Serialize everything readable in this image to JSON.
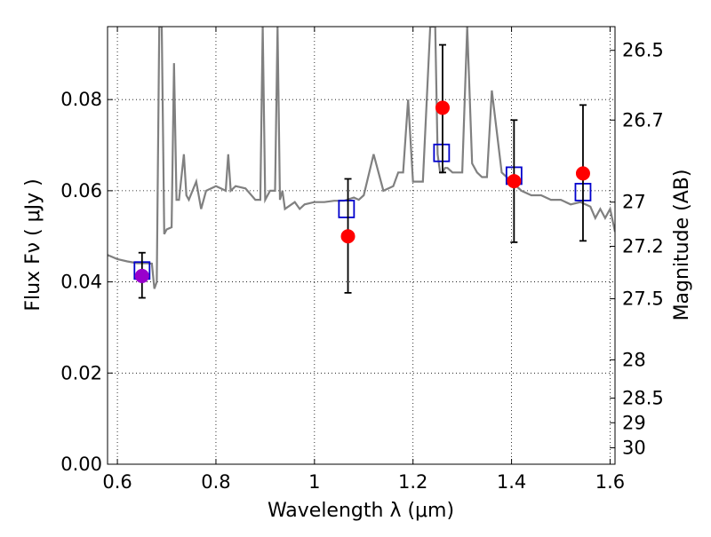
{
  "chart_data": {
    "type": "line",
    "xlabel": "Wavelength  λ (μm)",
    "ylabel": "Flux  Fν  ( μJy )",
    "ylabel_right": "Magnitude (AB)",
    "xlim": [
      0.58,
      1.61
    ],
    "ylim": [
      0.0,
      0.096
    ],
    "grid": true,
    "x_ticks": [
      0.6,
      0.8,
      1.0,
      1.2,
      1.4,
      1.6
    ],
    "x_tick_labels": [
      "0.6",
      "0.8",
      "1",
      "1.2",
      "1.4",
      "1.6"
    ],
    "y_ticks": [
      0.0,
      0.02,
      0.04,
      0.06,
      0.08
    ],
    "y_tick_labels": [
      "0.00",
      "0.02",
      "0.04",
      "0.06",
      "0.08"
    ],
    "right_ticks": [
      {
        "label": "26.5",
        "flux": 0.0908
      },
      {
        "label": "26.7",
        "flux": 0.0755
      },
      {
        "label": "27",
        "flux": 0.0575
      },
      {
        "label": "27.2",
        "flux": 0.0478
      },
      {
        "label": "27.5",
        "flux": 0.0363
      },
      {
        "label": "28",
        "flux": 0.0229
      },
      {
        "label": "28.5",
        "flux": 0.0145
      },
      {
        "label": "29",
        "flux": 0.0091
      },
      {
        "label": "30",
        "flux": 0.0036
      }
    ],
    "series": [
      {
        "kind": "line",
        "color": "#808080",
        "x": [
          0.58,
          0.6,
          0.62,
          0.64,
          0.66,
          0.67,
          0.675,
          0.68,
          0.685,
          0.69,
          0.695,
          0.7,
          0.71,
          0.715,
          0.72,
          0.725,
          0.735,
          0.74,
          0.745,
          0.76,
          0.77,
          0.78,
          0.8,
          0.81,
          0.82,
          0.825,
          0.83,
          0.84,
          0.86,
          0.88,
          0.89,
          0.895,
          0.9,
          0.91,
          0.92,
          0.925,
          0.93,
          0.935,
          0.94,
          0.96,
          0.97,
          0.98,
          1.0,
          1.02,
          1.04,
          1.06,
          1.08,
          1.09,
          1.1,
          1.12,
          1.14,
          1.16,
          1.17,
          1.18,
          1.19,
          1.2,
          1.21,
          1.22,
          1.235,
          1.245,
          1.25,
          1.255,
          1.26,
          1.265,
          1.27,
          1.28,
          1.3,
          1.31,
          1.32,
          1.33,
          1.34,
          1.35,
          1.36,
          1.38,
          1.4,
          1.42,
          1.44,
          1.46,
          1.48,
          1.5,
          1.52,
          1.54,
          1.56,
          1.57,
          1.58,
          1.59,
          1.6,
          1.61
        ],
        "y": [
          0.0459,
          0.045,
          0.0445,
          0.0441,
          0.0441,
          0.044,
          0.0385,
          0.04,
          0.096,
          0.096,
          0.0505,
          0.0515,
          0.052,
          0.088,
          0.058,
          0.058,
          0.068,
          0.059,
          0.058,
          0.062,
          0.056,
          0.06,
          0.061,
          0.0605,
          0.06,
          0.068,
          0.06,
          0.061,
          0.0605,
          0.058,
          0.058,
          0.096,
          0.058,
          0.06,
          0.06,
          0.096,
          0.058,
          0.06,
          0.056,
          0.0575,
          0.056,
          0.057,
          0.0575,
          0.0575,
          0.0578,
          0.0578,
          0.0585,
          0.058,
          0.059,
          0.068,
          0.06,
          0.061,
          0.064,
          0.064,
          0.08,
          0.062,
          0.062,
          0.062,
          0.096,
          0.096,
          0.068,
          0.064,
          0.064,
          0.065,
          0.065,
          0.064,
          0.064,
          0.096,
          0.066,
          0.064,
          0.063,
          0.063,
          0.082,
          0.064,
          0.062,
          0.06,
          0.059,
          0.059,
          0.058,
          0.058,
          0.057,
          0.0575,
          0.0565,
          0.054,
          0.056,
          0.054,
          0.056,
          0.051
        ]
      },
      {
        "kind": "squares",
        "color": "#0000cc",
        "x": [
          0.65,
          1.065,
          1.258,
          1.405,
          1.545
        ],
        "y": [
          0.0425,
          0.056,
          0.0683,
          0.0633,
          0.0597
        ]
      },
      {
        "kind": "points",
        "color": "#ff0000",
        "x": [
          0.65,
          1.068,
          1.26,
          1.405,
          1.545
        ],
        "y": [
          0.0413,
          0.05,
          0.0782,
          0.0621,
          0.0638
        ],
        "yerr_low": [
          0.0048,
          0.0124,
          0.0142,
          0.0134,
          0.0148
        ],
        "yerr_high": [
          0.0051,
          0.0126,
          0.0138,
          0.0134,
          0.015
        ],
        "point_colors": [
          "#9900cc",
          "#ff0000",
          "#ff0000",
          "#ff0000",
          "#ff0000"
        ]
      }
    ]
  }
}
